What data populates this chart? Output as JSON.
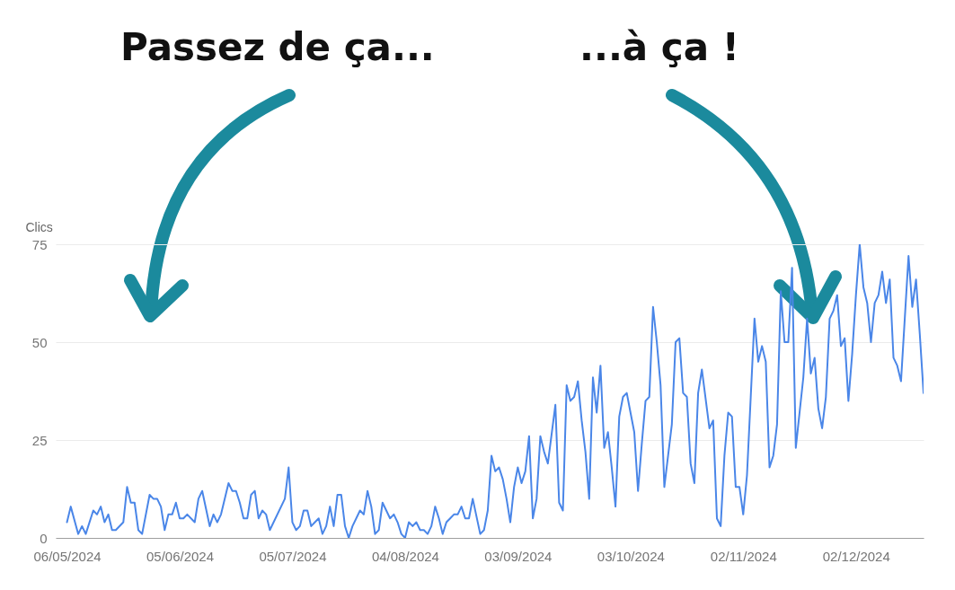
{
  "chart_data": {
    "type": "line",
    "ylabel": "Clics",
    "grid": "y",
    "annotations": [
      "Passez de ça...",
      "...à ça !"
    ],
    "xlim": [
      "2024-05-03",
      "2024-12-20"
    ],
    "xticks": [
      {
        "value": "2024-05-06",
        "label": "06/05/2024"
      },
      {
        "value": "2024-06-05",
        "label": "05/06/2024"
      },
      {
        "value": "2024-07-05",
        "label": "05/07/2024"
      },
      {
        "value": "2024-08-04",
        "label": "04/08/2024"
      },
      {
        "value": "2024-09-03",
        "label": "03/09/2024"
      },
      {
        "value": "2024-10-03",
        "label": "03/10/2024"
      },
      {
        "value": "2024-11-02",
        "label": "02/11/2024"
      },
      {
        "value": "2024-12-02",
        "label": "02/12/2024"
      }
    ],
    "ylim": [
      0,
      75
    ],
    "yticks": [
      0,
      25,
      50,
      75
    ],
    "x": [
      "2024-05-06",
      "2024-05-07",
      "2024-05-09",
      "2024-05-10",
      "2024-05-11",
      "2024-05-13",
      "2024-05-14",
      "2024-05-15",
      "2024-05-16",
      "2024-05-17",
      "2024-05-18",
      "2024-05-19",
      "2024-05-21",
      "2024-05-22",
      "2024-05-23",
      "2024-05-24",
      "2024-05-25",
      "2024-05-26",
      "2024-05-28",
      "2024-05-29",
      "2024-05-30",
      "2024-05-31",
      "2024-06-01",
      "2024-06-02",
      "2024-06-03",
      "2024-06-04",
      "2024-06-05",
      "2024-06-06",
      "2024-06-07",
      "2024-06-09",
      "2024-06-10",
      "2024-06-11",
      "2024-06-13",
      "2024-06-14",
      "2024-06-15",
      "2024-06-16",
      "2024-06-18",
      "2024-06-19",
      "2024-06-20",
      "2024-06-21",
      "2024-06-22",
      "2024-06-23",
      "2024-06-24",
      "2024-06-25",
      "2024-06-26",
      "2024-06-27",
      "2024-06-28",
      "2024-06-29",
      "2024-07-03",
      "2024-07-04",
      "2024-07-05",
      "2024-07-06",
      "2024-07-07",
      "2024-07-08",
      "2024-07-09",
      "2024-07-10",
      "2024-07-11",
      "2024-07-12",
      "2024-07-13",
      "2024-07-14",
      "2024-07-15",
      "2024-07-16",
      "2024-07-17",
      "2024-07-18",
      "2024-07-19",
      "2024-07-20",
      "2024-07-21",
      "2024-07-23",
      "2024-07-24",
      "2024-07-25",
      "2024-07-26",
      "2024-07-27",
      "2024-07-28",
      "2024-07-29",
      "2024-07-30",
      "2024-07-31",
      "2024-08-01",
      "2024-08-02",
      "2024-08-03",
      "2024-08-04",
      "2024-08-05",
      "2024-08-06",
      "2024-08-07",
      "2024-08-08",
      "2024-08-09",
      "2024-08-10",
      "2024-08-11",
      "2024-08-12",
      "2024-08-13",
      "2024-08-14",
      "2024-08-15",
      "2024-08-16",
      "2024-08-17",
      "2024-08-18",
      "2024-08-19",
      "2024-08-20",
      "2024-08-21",
      "2024-08-22",
      "2024-08-24",
      "2024-08-25",
      "2024-08-26",
      "2024-08-27",
      "2024-08-28",
      "2024-08-29",
      "2024-08-30",
      "2024-08-31",
      "2024-09-01",
      "2024-09-02",
      "2024-09-03",
      "2024-09-04",
      "2024-09-05",
      "2024-09-06",
      "2024-09-07",
      "2024-09-08",
      "2024-09-09",
      "2024-09-10",
      "2024-09-11",
      "2024-09-13",
      "2024-09-14",
      "2024-09-15",
      "2024-09-16",
      "2024-09-17",
      "2024-09-18",
      "2024-09-19",
      "2024-09-20",
      "2024-09-21",
      "2024-09-22",
      "2024-09-23",
      "2024-09-24",
      "2024-09-25",
      "2024-09-26",
      "2024-09-27",
      "2024-09-28",
      "2024-09-29",
      "2024-09-30",
      "2024-10-01",
      "2024-10-02",
      "2024-10-03",
      "2024-10-04",
      "2024-10-05",
      "2024-10-06",
      "2024-10-07",
      "2024-10-08",
      "2024-10-09",
      "2024-10-10",
      "2024-10-11",
      "2024-10-12",
      "2024-10-13",
      "2024-10-14",
      "2024-10-15",
      "2024-10-16",
      "2024-10-17",
      "2024-10-18",
      "2024-10-19",
      "2024-10-20",
      "2024-10-21",
      "2024-10-22",
      "2024-10-24",
      "2024-10-25",
      "2024-10-26",
      "2024-10-27",
      "2024-10-28",
      "2024-10-29",
      "2024-10-30",
      "2024-10-31",
      "2024-11-01",
      "2024-11-02",
      "2024-11-03",
      "2024-11-04",
      "2024-11-05",
      "2024-11-06",
      "2024-11-07",
      "2024-11-08",
      "2024-11-09",
      "2024-11-10",
      "2024-11-11",
      "2024-11-12",
      "2024-11-13",
      "2024-11-14",
      "2024-11-15",
      "2024-11-16",
      "2024-11-17",
      "2024-11-18",
      "2024-11-19",
      "2024-11-20",
      "2024-11-21",
      "2024-11-22",
      "2024-11-23",
      "2024-11-24",
      "2024-11-25",
      "2024-11-26",
      "2024-11-27",
      "2024-11-28",
      "2024-11-29",
      "2024-11-30",
      "2024-12-01",
      "2024-12-02",
      "2024-12-03",
      "2024-12-04",
      "2024-12-05",
      "2024-12-06",
      "2024-12-07",
      "2024-12-08",
      "2024-12-09",
      "2024-12-10",
      "2024-12-11",
      "2024-12-12",
      "2024-12-13",
      "2024-12-14",
      "2024-12-16",
      "2024-12-17",
      "2024-12-18",
      "2024-12-19",
      "2024-12-20"
    ],
    "series": [
      {
        "color": "#4a86e8",
        "values": [
          4,
          8,
          1,
          3,
          1,
          7,
          6,
          8,
          4,
          6,
          2,
          2,
          4,
          13,
          9,
          9,
          2,
          1,
          11,
          10,
          10,
          8,
          2,
          6,
          6,
          9,
          5,
          5,
          6,
          4,
          10,
          12,
          3,
          6,
          4,
          6,
          14,
          12,
          12,
          9,
          5,
          5,
          11,
          12,
          5,
          7,
          6,
          2,
          10,
          18,
          4,
          2,
          3,
          7,
          7,
          3,
          4,
          5,
          1,
          3,
          8,
          3,
          11,
          11,
          3,
          0,
          3,
          7,
          6,
          12,
          8,
          1,
          2,
          9,
          7,
          5,
          6,
          4,
          1,
          0,
          4,
          3,
          4,
          2,
          2,
          1,
          3,
          8,
          5,
          1,
          4,
          5,
          6,
          6,
          8,
          5,
          5,
          10,
          1,
          2,
          7,
          21,
          17,
          18,
          15,
          10,
          4,
          13,
          18,
          14,
          17,
          26,
          5,
          10,
          26,
          22,
          19,
          34,
          9,
          7,
          39,
          35,
          36,
          40,
          30,
          22,
          10,
          41,
          32,
          44,
          23,
          27,
          18,
          8,
          31,
          36,
          37,
          32,
          27,
          12,
          24,
          35,
          36,
          59,
          50,
          39,
          13,
          21,
          29,
          50,
          51,
          37,
          36,
          19,
          14,
          37,
          43,
          28,
          30,
          5,
          3,
          21,
          32,
          31,
          13,
          13,
          6,
          16,
          36,
          56,
          45,
          49,
          45,
          18,
          21,
          29,
          63,
          50,
          50,
          69,
          23,
          32,
          41,
          56,
          42,
          46,
          33,
          28,
          36,
          56,
          58,
          62,
          49,
          51,
          35,
          47,
          62,
          75,
          64,
          60,
          50,
          60,
          62,
          68,
          60,
          66,
          46,
          44,
          40,
          72,
          59,
          66,
          52,
          37
        ]
      }
    ]
  }
}
